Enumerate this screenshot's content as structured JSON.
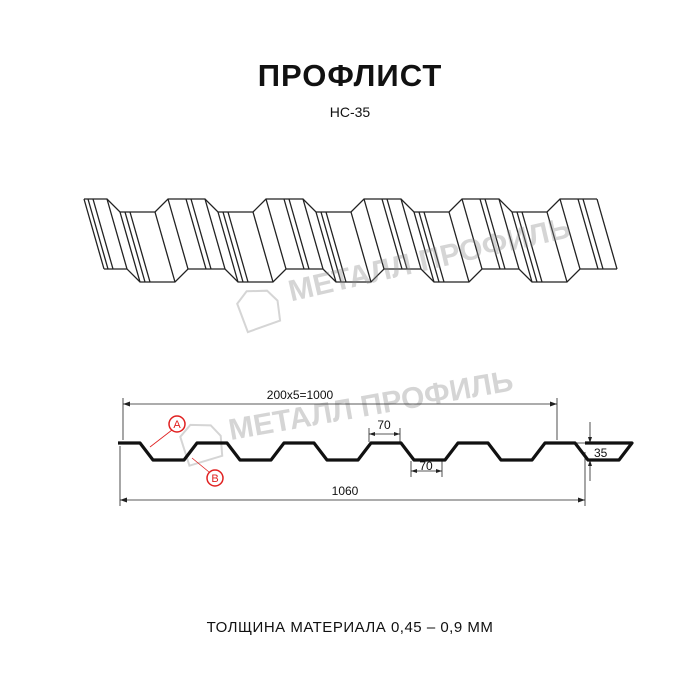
{
  "header": {
    "title": "ПРОФЛИСТ",
    "subtitle": "НС-35"
  },
  "watermark": {
    "text": "МЕТАЛЛ ПРОФИЛЬ"
  },
  "drawing": {
    "dim_pitch": "200x5=1000",
    "dim_total": "1060",
    "dim_top_flat": "70",
    "dim_bottom_flat": "70",
    "dim_height": "35",
    "callout_a": "A",
    "callout_b": "B",
    "callout_color": "#e02020"
  },
  "footer": {
    "thickness": "ТОЛЩИНА МАТЕРИАЛА 0,45 – 0,9 ММ"
  }
}
